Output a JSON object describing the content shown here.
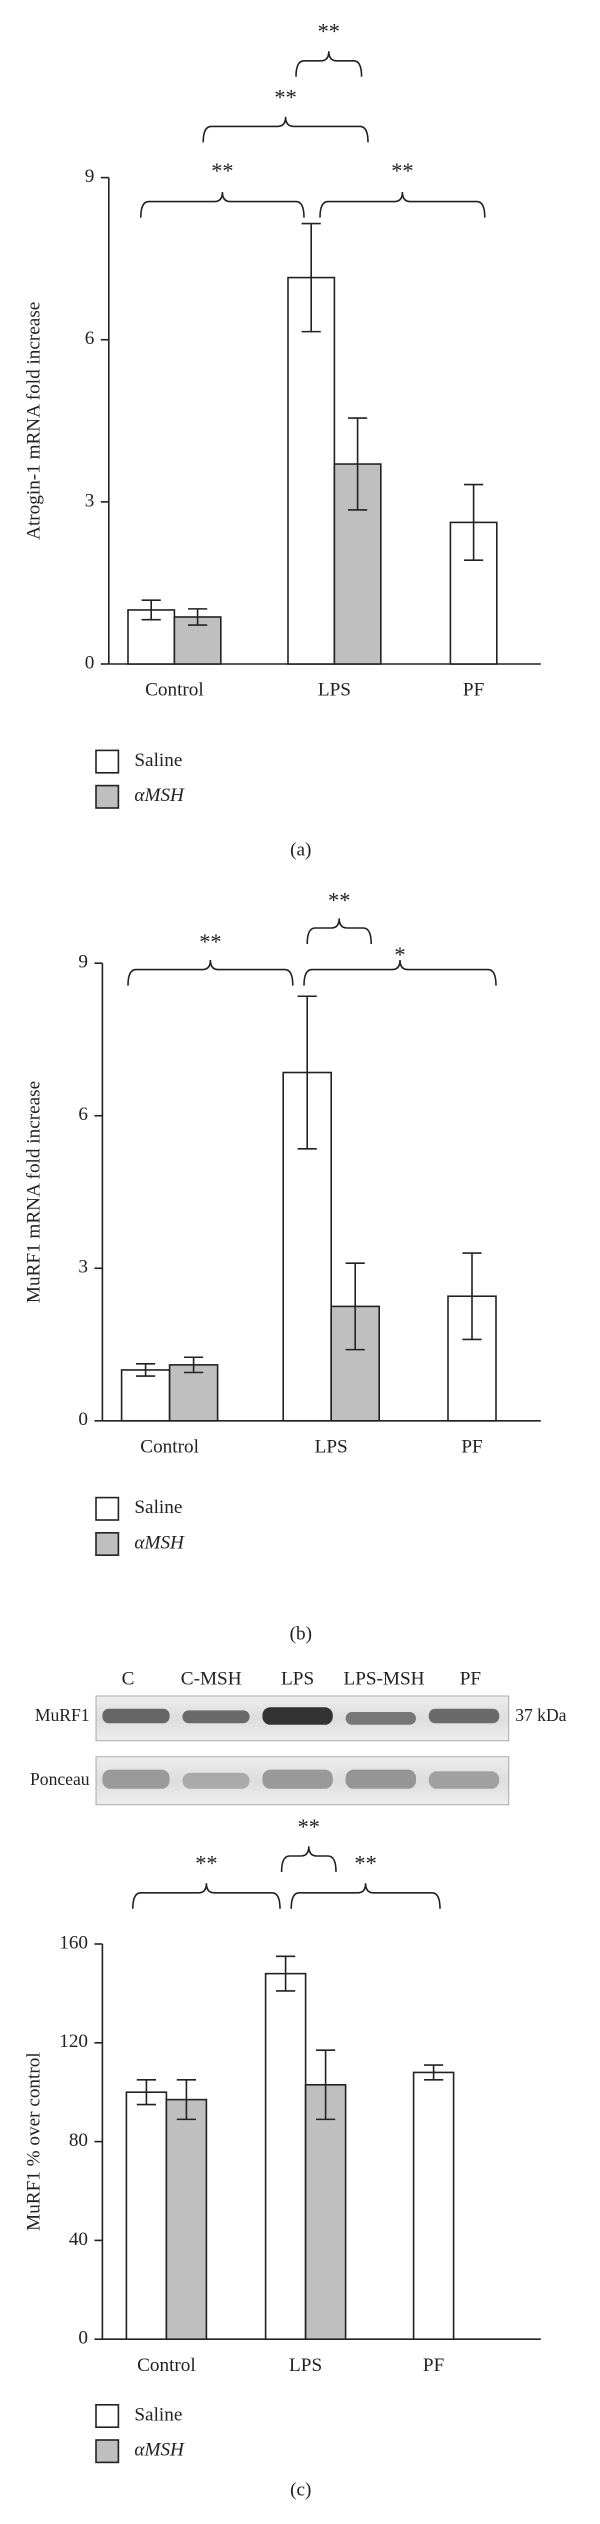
{
  "chart_data": [
    {
      "type": "bar",
      "y_label": "Atrogin-1 mRNA fold increase",
      "categories": [
        "Control",
        "LPS",
        "PF"
      ],
      "series": [
        {
          "name": "Saline",
          "color": "#ffffff",
          "values": [
            1.0,
            7.15,
            2.62
          ],
          "errors": [
            0.18,
            1.0,
            0.7
          ]
        },
        {
          "name": "αMSH",
          "color": "#bfbfbf",
          "values": [
            0.87,
            3.7,
            null
          ],
          "errors": [
            0.15,
            0.85,
            null
          ]
        }
      ],
      "ylim": [
        0,
        9
      ],
      "yticks": [
        0,
        3,
        6,
        9
      ],
      "annotations": [
        {
          "label": "**"
        },
        {
          "label": "**"
        },
        {
          "label": "**"
        },
        {
          "label": "**"
        }
      ],
      "caption": "(a)"
    },
    {
      "type": "bar",
      "y_label": "MuRF1 mRNA fold increase",
      "categories": [
        "Control",
        "LPS",
        "PF"
      ],
      "series": [
        {
          "name": "Saline",
          "color": "#ffffff",
          "values": [
            1.0,
            6.85,
            2.45
          ],
          "errors": [
            0.12,
            1.5,
            0.85
          ]
        },
        {
          "name": "αMSH",
          "color": "#bfbfbf",
          "values": [
            1.1,
            2.25,
            null
          ],
          "errors": [
            0.15,
            0.85,
            null
          ]
        }
      ],
      "ylim": [
        0,
        9
      ],
      "yticks": [
        0,
        3,
        6,
        9
      ],
      "annotations": [
        {
          "label": "**"
        },
        {
          "label": "**"
        },
        {
          "label": "*"
        }
      ],
      "caption": "(b)"
    },
    {
      "type": "bar",
      "y_label": "MuRF1 % over control",
      "categories": [
        "Control",
        "LPS",
        "PF"
      ],
      "series": [
        {
          "name": "Saline",
          "color": "#ffffff",
          "values": [
            100,
            148,
            108
          ],
          "errors": [
            5,
            7,
            3
          ]
        },
        {
          "name": "αMSH",
          "color": "#bfbfbf",
          "values": [
            97,
            103,
            null
          ],
          "errors": [
            8,
            14,
            null
          ]
        }
      ],
      "ylim": [
        0,
        160
      ],
      "yticks": [
        0,
        40,
        80,
        120,
        160
      ],
      "annotations": [
        {
          "label": "**"
        },
        {
          "label": "**"
        },
        {
          "label": "**"
        }
      ],
      "caption": "(c)"
    }
  ],
  "blot": {
    "lanes": [
      "C",
      "C-MSH",
      "LPS",
      "LPS-MSH",
      "PF"
    ],
    "rows": [
      "MuRF1",
      "Ponceau"
    ],
    "size_label": "37 kDa"
  }
}
